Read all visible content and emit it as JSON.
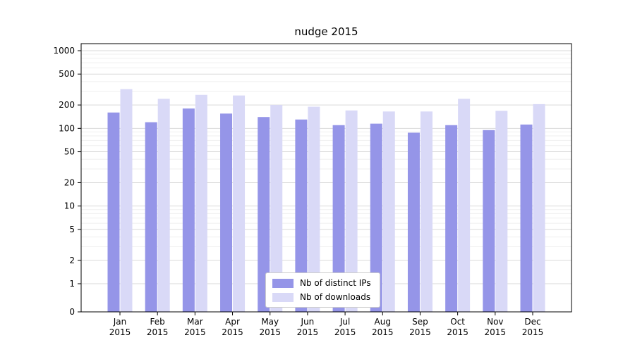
{
  "title": "nudge 2015",
  "chart_data": {
    "type": "bar",
    "title": "nudge 2015",
    "categories": [
      "Jan 2015",
      "Feb 2015",
      "Mar 2015",
      "Apr 2015",
      "May 2015",
      "Jun 2015",
      "Jul 2015",
      "Aug 2015",
      "Sep 2015",
      "Oct 2015",
      "Nov 2015",
      "Dec 2015"
    ],
    "month_labels": [
      [
        "Jan",
        "2015"
      ],
      [
        "Feb",
        "2015"
      ],
      [
        "Mar",
        "2015"
      ],
      [
        "Apr",
        "2015"
      ],
      [
        "May",
        "2015"
      ],
      [
        "Jun",
        "2015"
      ],
      [
        "Jul",
        "2015"
      ],
      [
        "Aug",
        "2015"
      ],
      [
        "Sep",
        "2015"
      ],
      [
        "Oct",
        "2015"
      ],
      [
        "Nov",
        "2015"
      ],
      [
        "Dec",
        "2015"
      ]
    ],
    "series": [
      {
        "name": "Nb of distinct IPs",
        "color": "#9595e8",
        "values": [
          160,
          120,
          180,
          155,
          140,
          130,
          110,
          115,
          88,
          110,
          95,
          112
        ]
      },
      {
        "name": "Nb of downloads",
        "color": "#d9d9f7",
        "values": [
          320,
          240,
          270,
          265,
          200,
          190,
          170,
          165,
          165,
          240,
          168,
          205
        ]
      }
    ],
    "yscale": "symlog",
    "yticks": [
      0,
      1,
      2,
      5,
      10,
      20,
      50,
      100,
      200,
      500,
      1000
    ],
    "ylim": [
      0,
      1230
    ],
    "xlabel": "",
    "ylabel": "",
    "grid": true,
    "legend_position": "lower center",
    "colors": {
      "major_grid": "#d9d9d9",
      "minor_grid": "#efefef",
      "frame": "#000000",
      "text": "#000000"
    }
  }
}
